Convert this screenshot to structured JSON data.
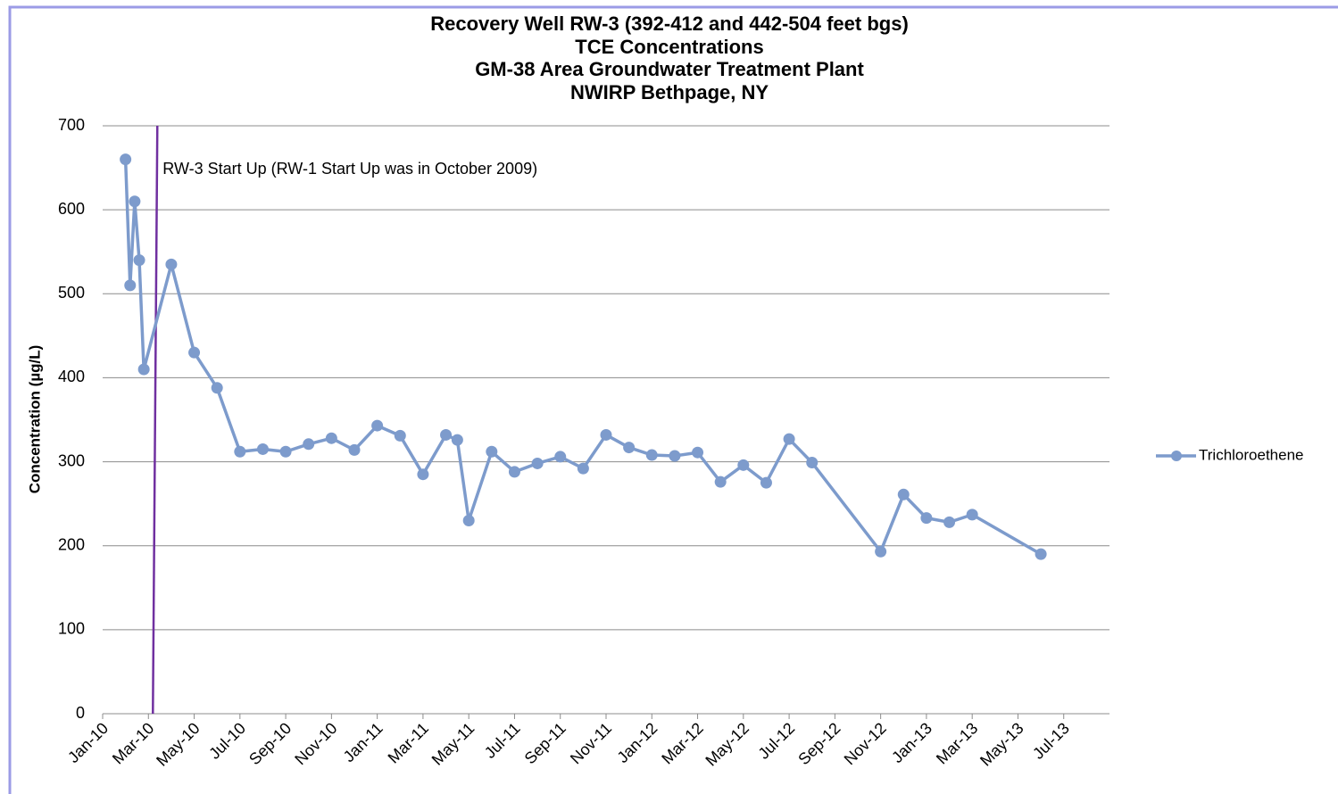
{
  "chart_data": {
    "type": "line",
    "title": [
      "Recovery Well RW-3 (392-412 and 442-504 feet bgs)",
      "TCE Concentrations",
      "GM-38 Area Groundwater Treatment Plant",
      "NWIRP Bethpage, NY"
    ],
    "y_label": "Concentration (µg/L)",
    "x": [
      "2010-02",
      "2010-02",
      "2010-02",
      "2010-02",
      "2010-02",
      "2010-04",
      "2010-05",
      "2010-06",
      "2010-07",
      "2010-08",
      "2010-09",
      "2010-10",
      "2010-11",
      "2010-12",
      "2011-01",
      "2011-02",
      "2011-03",
      "2011-04",
      "2011-04",
      "2011-05",
      "2011-06",
      "2011-07",
      "2011-08",
      "2011-09",
      "2011-10",
      "2011-11",
      "2011-12",
      "2012-01",
      "2012-02",
      "2012-03",
      "2012-04",
      "2012-05",
      "2012-06",
      "2012-07",
      "2012-08",
      "2012-11",
      "2012-12",
      "2013-01",
      "2013-02",
      "2013-03",
      "2013-06"
    ],
    "series": [
      {
        "name": "Trichloroethene",
        "color": "#7d9bcc",
        "values": [
          660,
          510,
          610,
          540,
          410,
          535,
          430,
          388,
          312,
          315,
          312,
          321,
          328,
          314,
          343,
          331,
          285,
          332,
          326,
          230,
          312,
          288,
          298,
          306,
          292,
          332,
          317,
          308,
          307,
          311,
          276,
          296,
          275,
          327,
          299,
          193,
          261,
          233,
          228,
          237,
          190
        ]
      }
    ],
    "xlim": [
      "2010-01",
      "2013-09"
    ],
    "xticks": [
      {
        "value": "2010-01",
        "label": "Jan-10"
      },
      {
        "value": "2010-03",
        "label": "Mar-10"
      },
      {
        "value": "2010-05",
        "label": "May-10"
      },
      {
        "value": "2010-07",
        "label": "Jul-10"
      },
      {
        "value": "2010-09",
        "label": "Sep-10"
      },
      {
        "value": "2010-11",
        "label": "Nov-10"
      },
      {
        "value": "2011-01",
        "label": "Jan-11"
      },
      {
        "value": "2011-03",
        "label": "Mar-11"
      },
      {
        "value": "2011-05",
        "label": "May-11"
      },
      {
        "value": "2011-07",
        "label": "Jul-11"
      },
      {
        "value": "2011-09",
        "label": "Sep-11"
      },
      {
        "value": "2011-11",
        "label": "Nov-11"
      },
      {
        "value": "2012-01",
        "label": "Jan-12"
      },
      {
        "value": "2012-03",
        "label": "Mar-12"
      },
      {
        "value": "2012-05",
        "label": "May-12"
      },
      {
        "value": "2012-07",
        "label": "Jul-12"
      },
      {
        "value": "2012-09",
        "label": "Sep-12"
      },
      {
        "value": "2012-11",
        "label": "Nov-12"
      },
      {
        "value": "2013-01",
        "label": "Jan-13"
      },
      {
        "value": "2013-03",
        "label": "Mar-13"
      },
      {
        "value": "2013-05",
        "label": "May-13"
      },
      {
        "value": "2013-07",
        "label": "Jul-13"
      }
    ],
    "ylim": [
      0,
      700
    ],
    "yticks": [
      0,
      100,
      200,
      300,
      400,
      500,
      600,
      700
    ],
    "grid": true,
    "legend": "right",
    "annotation": {
      "text": "RW-3 Start Up (RW-1 Start Up was in October 2009)",
      "x": "2010-03",
      "color": "#7030a0"
    }
  }
}
